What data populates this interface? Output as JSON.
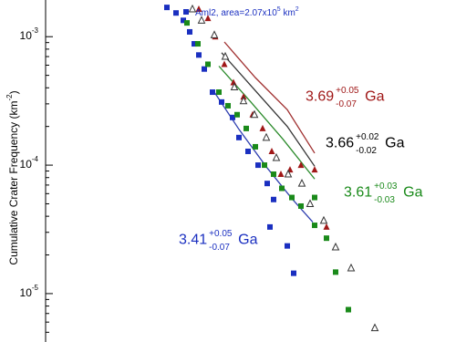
{
  "chart_data": {
    "type": "scatter",
    "ylabel": {
      "text": "Cumulative Crater Frequency (km",
      "sup": "-2",
      "end": ")"
    },
    "legend": {
      "text": "Aml2, area=2.07x10",
      "sup": "5",
      "mid": " km",
      "sup2": "2",
      "color": "#1a2fc0"
    },
    "log_y": true,
    "xlim": [
      0,
      500
    ],
    "ylim": [
      0.00193,
      4.2e-06
    ],
    "yticks": [
      {
        "value": 0.001,
        "label": "10",
        "exp": "-3"
      },
      {
        "value": 0.0001,
        "label": "10",
        "exp": "-4"
      },
      {
        "value": 1e-05,
        "label": "10",
        "exp": "-5"
      }
    ],
    "series": [
      {
        "marker": "square",
        "color": "#1a2fc0",
        "x": [
          183,
          193,
          201,
          208,
          213,
          218,
          224,
          233,
          243,
          255,
          262,
          272,
          283,
          293,
          300,
          296,
          315,
          322
        ],
        "values": [
          0.00169,
          0.00153,
          0.00134,
          0.00109,
          0.00088,
          0.00072,
          0.00056,
          0.00037,
          0.00031,
          0.000235,
          0.000164,
          0.000128,
          0.0001,
          7.2e-05,
          5.4e-05,
          3.3e-05,
          2.35e-05,
          1.44e-05
        ]
      },
      {
        "marker": "triangle",
        "color": "#a01818",
        "x": [
          218,
          228,
          236,
          246,
          256,
          267,
          277,
          288,
          298,
          308,
          318,
          330,
          345,
          358
        ],
        "values": [
          0.00164,
          0.00139,
          0.001,
          0.00061,
          0.00044,
          0.00034,
          0.000247,
          0.000193,
          0.000128,
          8.5e-05,
          9.2e-05,
          0.0001,
          9.2e-05,
          3.3e-05
        ]
      },
      {
        "marker": "open-triangle",
        "color": "#333333",
        "x": [
          211,
          221,
          235,
          247,
          257,
          267,
          279,
          292,
          303,
          316,
          331,
          340,
          355,
          368,
          385,
          411
        ],
        "values": [
          0.00164,
          0.00134,
          0.00103,
          0.0007,
          0.000405,
          0.000316,
          0.000247,
          0.000164,
          0.000114,
          8.5e-05,
          7.2e-05,
          5e-05,
          3.7e-05,
          2.3e-05,
          1.58e-05,
          5.4e-06
        ]
      },
      {
        "marker": "square",
        "color": "#1a8a1a",
        "x": [
          205,
          217,
          228,
          240,
          250,
          260,
          270,
          280,
          290,
          300,
          309,
          320,
          330,
          345,
          345,
          358,
          368,
          382
        ],
        "values": [
          0.00128,
          0.00088,
          0.00061,
          0.00037,
          0.00029,
          0.000247,
          0.000193,
          0.000139,
          0.0001,
          8.5e-05,
          6.6e-05,
          5.6e-05,
          4.8e-05,
          5.6e-05,
          3.4e-05,
          2.7e-05,
          1.47e-05,
          7.5e-06
        ]
      }
    ],
    "fits": [
      {
        "color": "#a03030",
        "x": [
          246,
          280,
          315,
          345
        ],
        "values": [
          0.00091,
          0.00048,
          0.00027,
          0.000124
        ]
      },
      {
        "color": "#333333",
        "x": [
          243,
          280,
          315,
          345
        ],
        "values": [
          0.00075,
          0.00038,
          0.0002,
          9.8e-05
        ]
      },
      {
        "color": "#2a8a2a",
        "x": [
          240,
          275,
          310,
          345
        ],
        "values": [
          0.00059,
          0.00031,
          0.00016,
          7.8e-05
        ]
      },
      {
        "color": "#3040b0",
        "x": [
          235,
          262,
          292,
          320,
          343
        ],
        "values": [
          0.00037,
          0.00019,
          9.7e-05,
          5.5e-05,
          3.6e-05
        ]
      }
    ],
    "annotations": [
      {
        "age": "3.69",
        "plus": "+0.05",
        "minus": "-0.07",
        "unit": "Ga",
        "color": "#a01818",
        "x": 335,
        "y": 0.00034
      },
      {
        "age": "3.66",
        "plus": "+0.02",
        "minus": "-0.02",
        "unit": "Ga",
        "color": "#000000",
        "x": 357,
        "y": 0.000147
      },
      {
        "age": "3.61",
        "plus": "+0.03",
        "minus": "-0.03",
        "unit": "Ga",
        "color": "#1a8a1a",
        "x": 377,
        "y": 6.1e-05
      },
      {
        "age": "3.41",
        "plus": "+0.05",
        "minus": "-0.07",
        "unit": "Ga",
        "color": "#1a2fc0",
        "x": 196,
        "y": 2.6e-05
      }
    ]
  }
}
